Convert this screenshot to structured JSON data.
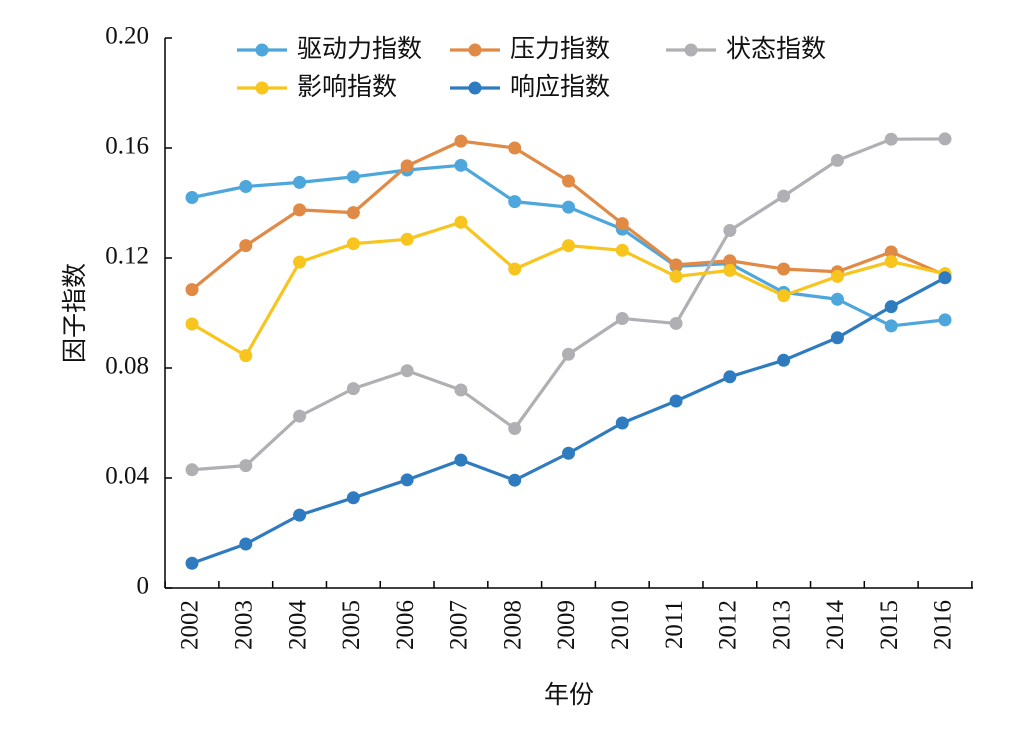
{
  "chart_data": {
    "type": "line",
    "title": "",
    "xlabel": "年份",
    "ylabel": "因子指数",
    "categories": [
      "2002",
      "2003",
      "2004",
      "2005",
      "2006",
      "2007",
      "2008",
      "2009",
      "2010",
      "2011",
      "2012",
      "2013",
      "2014",
      "2015",
      "2016"
    ],
    "yticks": [
      "0",
      "0.04",
      "0.08",
      "0.12",
      "0.16",
      "0.20"
    ],
    "ylim": [
      0,
      0.2
    ],
    "grid": false,
    "legend_position": "top",
    "series": [
      {
        "name": "驱动力指数",
        "color": "#4ea7dc",
        "values": [
          0.142,
          0.146,
          0.1475,
          0.1495,
          0.152,
          0.1537,
          0.1405,
          0.1385,
          0.1305,
          0.117,
          0.118,
          0.1075,
          0.105,
          0.0953,
          0.0975
        ]
      },
      {
        "name": "压力指数",
        "color": "#e08a45",
        "values": [
          0.1085,
          0.1245,
          0.1375,
          0.1365,
          0.1535,
          0.1625,
          0.16,
          0.148,
          0.1325,
          0.1175,
          0.119,
          0.116,
          0.115,
          0.1222,
          0.1138
        ]
      },
      {
        "name": "状态指数",
        "color": "#b0b0b4",
        "values": [
          0.043,
          0.0445,
          0.0625,
          0.0725,
          0.079,
          0.072,
          0.058,
          0.085,
          0.098,
          0.0962,
          0.13,
          0.1425,
          0.1555,
          0.1632,
          0.1633
        ]
      },
      {
        "name": "影响指数",
        "color": "#f7c51d",
        "values": [
          0.096,
          0.0845,
          0.1185,
          0.1252,
          0.1268,
          0.133,
          0.116,
          0.1245,
          0.1228,
          0.1133,
          0.1155,
          0.1063,
          0.1133,
          0.1187,
          0.1143
        ]
      },
      {
        "name": "响应指数",
        "color": "#2f7bbf",
        "values": [
          0.009,
          0.016,
          0.0265,
          0.0328,
          0.0393,
          0.0465,
          0.0392,
          0.049,
          0.06,
          0.068,
          0.0768,
          0.0828,
          0.091,
          0.1023,
          0.1128
        ]
      }
    ]
  }
}
